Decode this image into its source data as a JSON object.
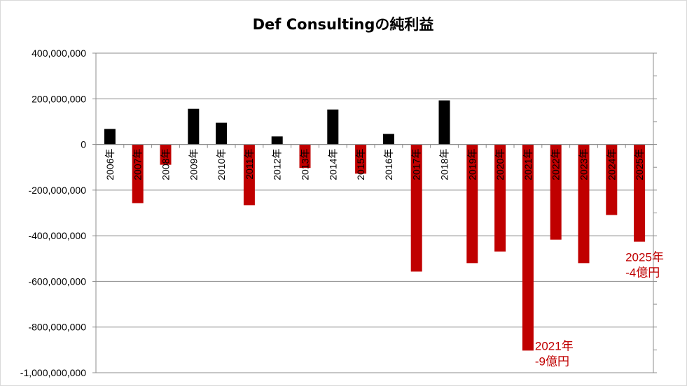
{
  "chart_data": {
    "type": "bar",
    "title": "Def Consultingの純利益",
    "xlabel": "",
    "ylabel": "",
    "ylim": [
      -1000000000,
      400000000
    ],
    "ytick_step": 200000000,
    "yticks": [
      "400,000,000",
      "200,000,000",
      "0",
      "-200,000,000",
      "-400,000,000",
      "-600,000,000",
      "-800,000,000",
      "-1,000,000,000"
    ],
    "grid": true,
    "legend": "none",
    "categories": [
      "2006年",
      "2007年",
      "2008年",
      "2009年",
      "2010年",
      "2011年",
      "2012年",
      "2013年",
      "2014年",
      "2015年",
      "2016年",
      "2017年",
      "2018年",
      "2019年",
      "2020年",
      "2021年",
      "2022年",
      "2023年",
      "2024年",
      "2025年"
    ],
    "values": [
      68000000,
      -257000000,
      -89000000,
      156000000,
      95000000,
      -266000000,
      35000000,
      -103000000,
      153000000,
      -128000000,
      46000000,
      -557000000,
      193000000,
      -520000000,
      -469000000,
      -903000000,
      -417000000,
      -520000000,
      -309000000,
      -426000000
    ],
    "colors": {
      "positive": "#000000",
      "negative": "#c00000"
    },
    "annotations": [
      {
        "category": "2021年",
        "lines": [
          "2021年",
          "-9億円"
        ]
      },
      {
        "category": "2025年",
        "lines": [
          "2025年",
          "-4億円"
        ]
      }
    ]
  }
}
